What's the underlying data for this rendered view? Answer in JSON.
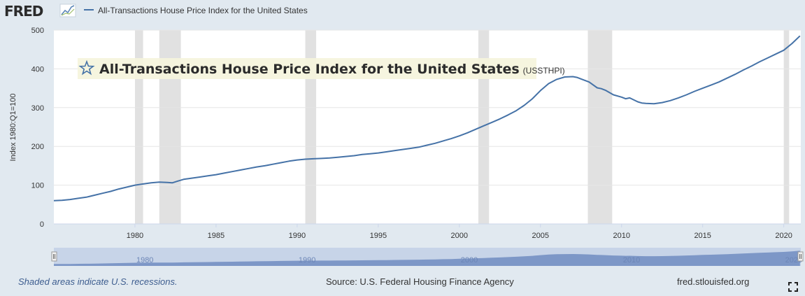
{
  "header": {
    "logo_text": "FRED",
    "legend_label": "All-Transactions House Price Index for the United States"
  },
  "chart_data": {
    "type": "line",
    "title": "All-Transactions House Price Index for the United States",
    "series_code": "(USSTHPI)",
    "ylabel": "Index 1980:Q1=100",
    "xlabel": "",
    "ylim": [
      0,
      500
    ],
    "xlim": [
      1975.0,
      2021.05
    ],
    "y_ticks": [
      0,
      100,
      200,
      300,
      400,
      500
    ],
    "x_ticks": [
      1980,
      1985,
      1990,
      1995,
      2000,
      2005,
      2010,
      2015,
      2020
    ],
    "grid": true,
    "line_color": "#4572a7",
    "recessions": [
      [
        1980.0,
        1980.5
      ],
      [
        1981.5,
        1982.83
      ],
      [
        1990.5,
        1991.17
      ],
      [
        2001.17,
        2001.83
      ],
      [
        2007.92,
        2009.42
      ],
      [
        2020.0,
        2020.33
      ]
    ],
    "series": [
      {
        "name": "All-Transactions House Price Index for the United States",
        "x": [
          1975.0,
          1975.5,
          1976.0,
          1976.5,
          1977.0,
          1977.5,
          1978.0,
          1978.5,
          1979.0,
          1979.5,
          1980.0,
          1980.5,
          1981.0,
          1981.5,
          1982.0,
          1982.3,
          1982.6,
          1983.0,
          1983.5,
          1984.0,
          1984.5,
          1985.0,
          1985.5,
          1986.0,
          1986.5,
          1987.0,
          1987.5,
          1988.0,
          1988.5,
          1989.0,
          1989.5,
          1990.0,
          1990.5,
          1991.0,
          1991.5,
          1992.0,
          1992.5,
          1993.0,
          1993.5,
          1994.0,
          1994.5,
          1995.0,
          1995.5,
          1996.0,
          1996.5,
          1997.0,
          1997.5,
          1998.0,
          1998.5,
          1999.0,
          1999.5,
          2000.0,
          2000.5,
          2001.0,
          2001.5,
          2002.0,
          2002.5,
          2003.0,
          2003.5,
          2004.0,
          2004.5,
          2005.0,
          2005.5,
          2006.0,
          2006.5,
          2007.0,
          2007.25,
          2007.5,
          2008.0,
          2008.5,
          2008.75,
          2009.0,
          2009.5,
          2010.0,
          2010.25,
          2010.5,
          2011.0,
          2011.25,
          2011.5,
          2012.0,
          2012.5,
          2013.0,
          2013.5,
          2014.0,
          2014.5,
          2015.0,
          2015.5,
          2016.0,
          2016.5,
          2017.0,
          2017.5,
          2018.0,
          2018.5,
          2019.0,
          2019.5,
          2020.0,
          2020.5,
          2021.0
        ],
        "values": [
          60,
          61,
          63,
          66,
          69,
          74,
          79,
          84,
          90,
          95,
          100,
          103,
          106,
          108,
          107,
          106,
          110,
          115,
          118,
          121,
          124,
          127,
          131,
          135,
          139,
          143,
          147,
          150,
          154,
          158,
          162,
          165,
          167,
          168,
          169,
          170,
          172,
          174,
          176,
          179,
          181,
          183,
          186,
          189,
          192,
          195,
          198,
          203,
          208,
          214,
          220,
          227,
          235,
          244,
          253,
          262,
          271,
          281,
          292,
          306,
          323,
          344,
          362,
          373,
          379,
          380,
          378,
          374,
          366,
          351,
          349,
          345,
          333,
          327,
          323,
          325,
          315,
          312,
          311,
          310,
          313,
          318,
          325,
          333,
          342,
          350,
          358,
          366,
          376,
          386,
          397,
          407,
          418,
          428,
          438,
          448,
          465,
          485
        ]
      }
    ]
  },
  "title_box": {
    "title": "All-Transactions House Price Index for the United States",
    "code": "(USSTHPI)"
  },
  "navigator": {
    "tick_labels": [
      "1980",
      "1990",
      "2000",
      "2010",
      "2020"
    ]
  },
  "footer": {
    "note": "Shaded areas indicate U.S. recessions.",
    "source": "Source: U.S. Federal Housing Finance Agency",
    "site": "fred.stlouisfed.org"
  }
}
